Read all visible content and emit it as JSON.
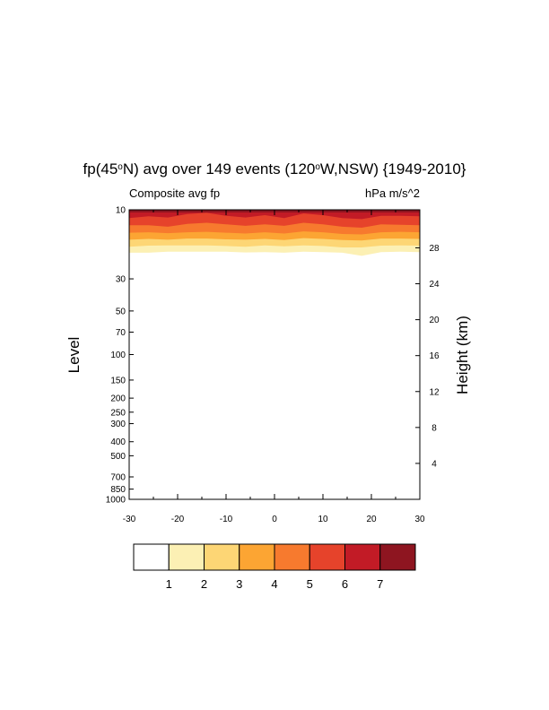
{
  "chart_data": {
    "type": "area",
    "title": "fp(45°N) avg over 149 events (120°W,NSW) {1949-2010}",
    "title_parts": {
      "a": "fp(45",
      "sup1": "o",
      "b": "N) avg over 149 events (120",
      "sup2": "o",
      "c": "W,NSW) {1949-2010}"
    },
    "left_subtitle": "Composite avg fp",
    "right_subtitle": "hPa m/s^2",
    "ylabel_left": "Level",
    "ylabel_right": "Height (km)",
    "x_range": [
      -30,
      30
    ],
    "x_ticks": [
      -30,
      -20,
      -10,
      0,
      10,
      20,
      30
    ],
    "x_tick_labels": [
      "-30",
      "-20",
      "-10",
      "0",
      "10",
      "20",
      "30"
    ],
    "y_range_hpa": [
      1000,
      10
    ],
    "y_scale": "log",
    "y_ticks": [
      10,
      30,
      50,
      70,
      100,
      150,
      200,
      250,
      300,
      400,
      500,
      700,
      850,
      1000
    ],
    "y_tick_labels": [
      "10",
      "30",
      "50",
      "70",
      "100",
      "150",
      "200",
      "250",
      "300",
      "400",
      "500",
      "700",
      "850",
      "1000"
    ],
    "right_ticks_km": [
      4,
      8,
      12,
      16,
      20,
      24,
      28
    ],
    "right_tick_labels": [
      "4",
      "8",
      "12",
      "16",
      "20",
      "24",
      "28"
    ],
    "contour_levels": [
      1,
      2,
      3,
      4,
      5,
      6,
      7
    ],
    "colorbar_labels": [
      "1",
      "2",
      "3",
      "4",
      "5",
      "6",
      "7"
    ],
    "colors": [
      "#ffffff",
      "#fcf0b4",
      "#fdd675",
      "#fca533",
      "#f77a2e",
      "#e6432b",
      "#c21b26",
      "#8e1520"
    ],
    "x_samples": [
      -30,
      -26,
      -22,
      -18,
      -14,
      -10,
      -6,
      -2,
      2,
      6,
      10,
      14,
      18,
      22,
      26,
      30
    ],
    "boundary_pressures_hpa": [
      {
        "level": 1,
        "p": [
          19.8,
          19.8,
          19.5,
          19.5,
          19.5,
          19.5,
          19.7,
          19.6,
          19.8,
          19.5,
          19.6,
          19.8,
          20.8,
          19.6,
          19.5,
          19.6
        ]
      },
      {
        "level": 2,
        "p": [
          18.0,
          17.7,
          17.6,
          17.6,
          17.6,
          17.8,
          18.0,
          17.6,
          17.9,
          17.6,
          17.8,
          18.2,
          18.2,
          17.7,
          17.6,
          17.7
        ]
      },
      {
        "level": 3,
        "p": [
          16.1,
          15.9,
          16.1,
          15.8,
          15.8,
          16.0,
          16.1,
          15.9,
          16.2,
          15.7,
          15.9,
          16.2,
          16.3,
          15.8,
          15.8,
          15.9
        ]
      },
      {
        "level": 4,
        "p": [
          14.4,
          14.3,
          14.5,
          14.3,
          14.2,
          14.4,
          14.6,
          14.3,
          14.6,
          14.1,
          14.3,
          14.7,
          14.8,
          14.3,
          14.2,
          14.3
        ]
      },
      {
        "level": 5,
        "p": [
          12.8,
          12.8,
          13.1,
          12.5,
          12.3,
          12.6,
          12.9,
          12.6,
          12.9,
          12.3,
          12.6,
          13.1,
          13.3,
          12.6,
          12.7,
          12.8
        ]
      },
      {
        "level": 6,
        "p": [
          11.4,
          11.1,
          11.3,
          10.7,
          10.5,
          11.0,
          11.3,
          10.9,
          11.4,
          10.6,
          10.9,
          11.4,
          11.6,
          11.0,
          11.0,
          11.1
        ]
      },
      {
        "level": 7,
        "p": [
          10.0,
          10.0,
          10.0,
          10.0,
          10.0,
          10.0,
          10.0,
          10.0,
          10.0,
          10.0,
          10.0,
          10.0,
          10.0,
          10.0,
          10.0,
          10.0
        ]
      }
    ]
  }
}
